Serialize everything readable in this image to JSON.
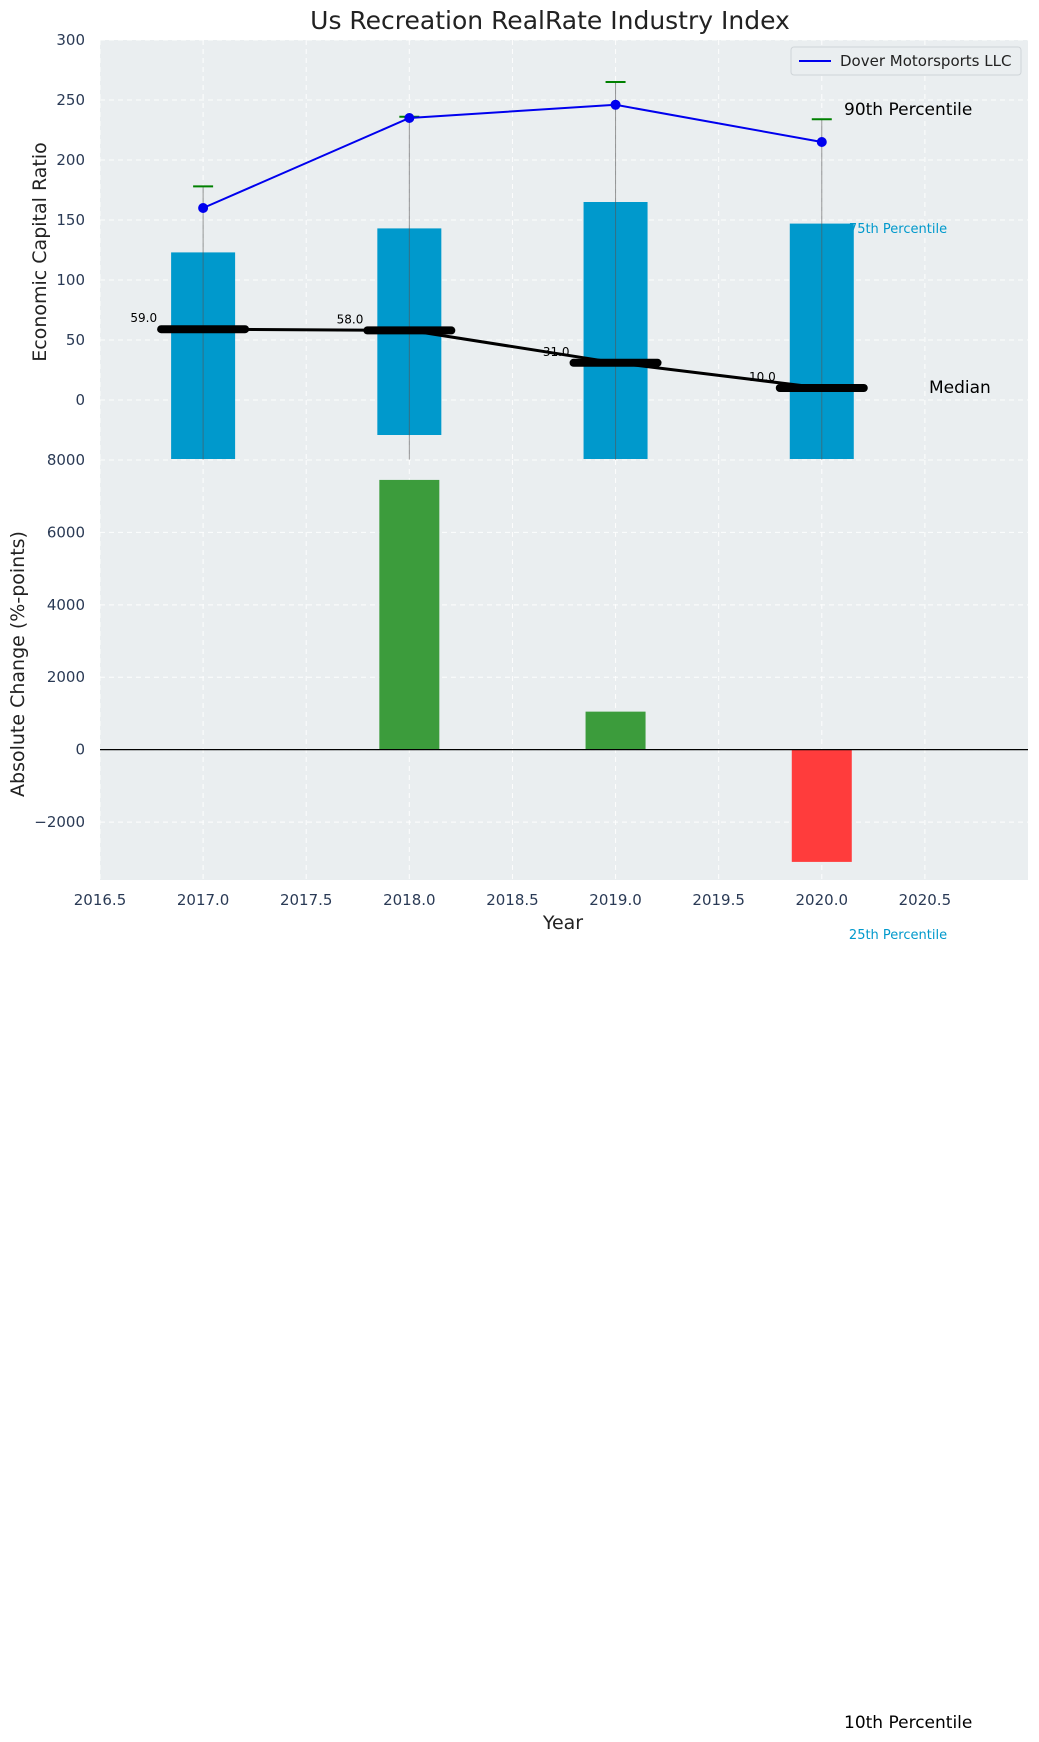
{
  "title": "Us Recreation RealRate Industry Index",
  "chart_data": [
    {
      "type": "bar+line",
      "ylabel": "Economic Capital Ratio",
      "ylim": [
        -50,
        300
      ],
      "yticks": [
        0,
        50,
        100,
        150,
        200,
        250,
        300
      ],
      "xlim": [
        2016.5,
        2021.0
      ],
      "grid": true,
      "legend": {
        "position": "top-right",
        "entries": [
          "Dover Motorsports LLC"
        ]
      },
      "x": [
        2017,
        2018,
        2019,
        2020
      ],
      "bars_25_to_75": [
        {
          "x": 2017,
          "low": -50,
          "high": 123
        },
        {
          "x": 2018,
          "low": -30,
          "high": 143
        },
        {
          "x": 2019,
          "low": -50,
          "high": 165
        },
        {
          "x": 2020,
          "low": -50,
          "high": 147
        }
      ],
      "whiskers_10_to_90": [
        {
          "x": 2017,
          "low": -50,
          "high": 178
        },
        {
          "x": 2018,
          "low": -50,
          "high": 236
        },
        {
          "x": 2019,
          "low": -50,
          "high": 265
        },
        {
          "x": 2020,
          "low": -50,
          "high": 234
        }
      ],
      "median": {
        "values": [
          59.0,
          58.0,
          31.0,
          10.0
        ],
        "labels": [
          "59.0",
          "58.0",
          "31.0",
          "10.0"
        ]
      },
      "series": [
        {
          "name": "Dover Motorsports LLC",
          "values": [
            160,
            235,
            246,
            215
          ],
          "color": "#0000ee"
        }
      ],
      "annotations": {
        "p90": "90th Percentile",
        "p75": "75th Percentile",
        "median": "Median",
        "p25": "25th Percentile",
        "p10": "10th Percentile"
      },
      "colors": {
        "bars": "#0099cc",
        "median": "#000000",
        "whisker_cap": "#008000",
        "background": "#eaeef0"
      }
    },
    {
      "type": "bar",
      "xlabel": "Year",
      "ylabel": "Absolute Change (%-points)",
      "ylim": [
        -3600,
        8000
      ],
      "yticks": [
        -2000,
        0,
        2000,
        4000,
        6000,
        8000
      ],
      "ytick_labels": [
        "−2000",
        "0",
        "2000",
        "4000",
        "6000",
        "8000"
      ],
      "xticks": [
        2016.5,
        2017.0,
        2017.5,
        2018.0,
        2018.5,
        2019.0,
        2019.5,
        2020.0,
        2020.5
      ],
      "xtick_labels": [
        "2016.5",
        "2017.0",
        "2017.5",
        "2018.0",
        "2018.5",
        "2019.0",
        "2019.5",
        "2020.0",
        "2020.5"
      ],
      "x": [
        2017,
        2018,
        2019,
        2020
      ],
      "values": [
        0,
        7450,
        1050,
        -3100
      ],
      "colors": {
        "positive": "#3c9c3c",
        "negative": "#ff3c3c"
      }
    }
  ]
}
